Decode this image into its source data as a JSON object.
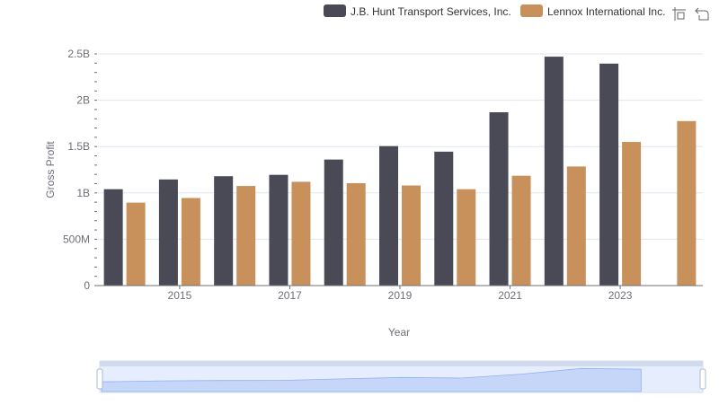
{
  "chart_data": {
    "type": "bar",
    "title": "",
    "xlabel": "Year",
    "ylabel": "Gross Profit",
    "x": [
      2014,
      2015,
      2016,
      2017,
      2018,
      2019,
      2020,
      2021,
      2022,
      2023,
      2024
    ],
    "x_tick_labels": [
      "2015",
      "2017",
      "2019",
      "2021",
      "2023"
    ],
    "y_ticks": [
      0,
      500000000,
      1000000000,
      1500000000,
      2000000000,
      2500000000
    ],
    "y_tick_labels": [
      "0",
      "500M",
      "1B",
      "1.5B",
      "2B",
      "2.5B"
    ],
    "ylim": [
      0,
      2500000000
    ],
    "grid": true,
    "legend_position": "top-right",
    "series": [
      {
        "name": "J.B. Hunt Transport Services, Inc.",
        "color": "#494a56",
        "values": [
          1040000000,
          1145000000,
          1180000000,
          1195000000,
          1360000000,
          1505000000,
          1445000000,
          1870000000,
          2470000000,
          2395000000,
          null
        ]
      },
      {
        "name": "Lennox International Inc.",
        "color": "#c8915c",
        "values": [
          895000000,
          945000000,
          1075000000,
          1120000000,
          1105000000,
          1080000000,
          1040000000,
          1185000000,
          1285000000,
          1550000000,
          1775000000
        ]
      }
    ],
    "toolbox_icons": [
      "zoom-icon",
      "restore-icon"
    ],
    "datazoom": {
      "range_start": 0,
      "range_end": 100
    }
  }
}
